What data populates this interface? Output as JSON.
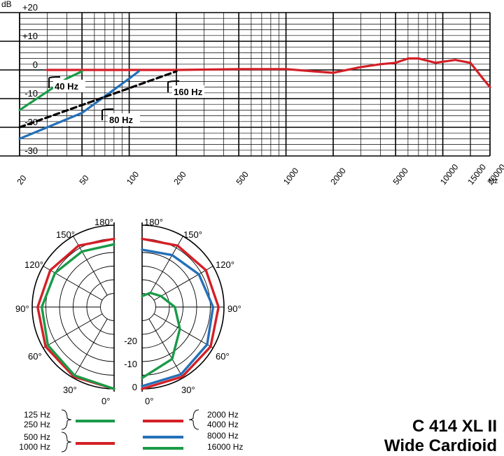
{
  "title": {
    "line1": "C 414 XL II",
    "line2": "Wide Cardioid"
  },
  "chart_data": [
    {
      "type": "line",
      "x_scale": "log",
      "y_unit": "dB",
      "x_unit": "Hz",
      "ylim": [
        -30,
        20
      ],
      "xlim": [
        20,
        20000
      ],
      "yticks": [
        "+20",
        "+10",
        "0",
        "-10",
        "-20",
        "-30"
      ],
      "y_unit_label": "dB",
      "x_unit_label": "Hz",
      "xtick_labels": [
        "20",
        "50",
        "100",
        "200",
        "500",
        "1000",
        "2000",
        "5000",
        "10000",
        "15000",
        "20000"
      ],
      "xtick_values": [
        20,
        50,
        100,
        200,
        500,
        1000,
        2000,
        5000,
        10000,
        15000,
        20000
      ],
      "grid": true,
      "series": [
        {
          "color": "#d41f26",
          "x": [
            30,
            40,
            50,
            70,
            100,
            200,
            500,
            1000,
            1500,
            2000,
            3000,
            4000,
            5000,
            6000,
            7000,
            9000,
            12000,
            15000,
            18000,
            20000
          ],
          "y": [
            0,
            0,
            0,
            0,
            0,
            0,
            0.3,
            0.3,
            -0.5,
            -1,
            1,
            2,
            2.5,
            4,
            4,
            2.5,
            3.5,
            2.5,
            -3,
            -6
          ]
        },
        {
          "color": "#1a9a48",
          "x": [
            20,
            40,
            50
          ],
          "y": [
            -14,
            -3,
            -0.5
          ]
        },
        {
          "color": "#2470b8",
          "x": [
            20,
            50,
            100,
            115
          ],
          "y": [
            -24,
            -15,
            -3,
            -0.5
          ]
        },
        {
          "color": "#000000",
          "style": "dashed",
          "x": [
            20,
            200
          ],
          "y": [
            -20,
            -0.5
          ]
        }
      ],
      "annotations": [
        {
          "text": "40 Hz"
        },
        {
          "text": "80 Hz"
        },
        {
          "text": "160 Hz"
        }
      ]
    },
    {
      "type": "polar",
      "angle_labels_left": [
        "180°",
        "150°",
        "120°",
        "90°",
        "60°",
        "30°",
        "0°"
      ],
      "angle_labels_right": [
        "180°",
        "150°",
        "120°",
        "90°",
        "60°",
        "30°",
        "0°"
      ],
      "radial_labels": [
        "-20",
        "-10",
        "0"
      ],
      "radial_range_db": [
        -30,
        0
      ],
      "left_half": [
        {
          "color": "#d41f26",
          "angle_deg": [
            0,
            30,
            60,
            90,
            120,
            150,
            180
          ],
          "level_db": [
            0,
            -0.5,
            -1,
            -2,
            -3,
            -4,
            -5
          ]
        },
        {
          "color": "#1a9a48",
          "angle_deg": [
            0,
            30,
            60,
            90,
            120,
            150,
            180
          ],
          "level_db": [
            0,
            -1,
            -2,
            -3.5,
            -5,
            -6.5,
            -7
          ]
        }
      ],
      "right_half": [
        {
          "color": "#d41f26",
          "angle_deg": [
            0,
            30,
            60,
            90,
            120,
            150,
            180
          ],
          "level_db": [
            0,
            -0.5,
            -1,
            -2,
            -3,
            -4,
            -5
          ]
        },
        {
          "color": "#2470b8",
          "angle_deg": [
            0,
            30,
            60,
            90,
            120,
            150,
            180
          ],
          "level_db": [
            -1,
            -1.5,
            -2.5,
            -4,
            -6,
            -8,
            -9
          ]
        },
        {
          "color": "#1a9a48",
          "angle_deg": [
            0,
            30,
            60,
            90,
            120,
            150,
            180
          ],
          "level_db": [
            -4,
            -8,
            -14,
            -18,
            -22,
            -24,
            -26
          ]
        }
      ],
      "legend": {
        "left": [
          {
            "labels": [
              "125 Hz",
              "250 Hz"
            ],
            "color": "#1a9a48"
          },
          {
            "labels": [
              "500 Hz",
              "1000 Hz"
            ],
            "color": "#d41f26"
          }
        ],
        "right": [
          {
            "labels": [
              "2000 Hz",
              "4000 Hz"
            ],
            "color": "#d41f26"
          },
          {
            "labels": [
              "8000 Hz"
            ],
            "color": "#2470b8"
          },
          {
            "labels": [
              "16000 Hz"
            ],
            "color": "#1a9a48"
          }
        ]
      }
    }
  ]
}
